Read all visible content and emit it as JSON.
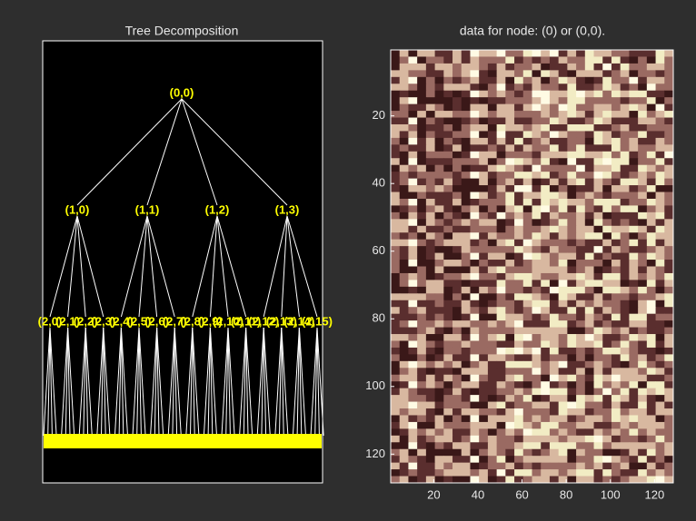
{
  "tree_panel": {
    "title": "Tree Decomposition",
    "levels": [
      [
        "(0,0)"
      ],
      [
        "(1,0)",
        "(1,1)",
        "(1,2)",
        "(1,3)"
      ],
      [
        "(2,0)",
        "(2,1)",
        "(2,2)",
        "(2,3)",
        "(2,4)",
        "(2,5)",
        "(2,6)",
        "(2,7)",
        "(2,8)",
        "(2,9)",
        "(2,10)",
        "(2,11)",
        "(2,12)",
        "(2,13)",
        "(2,14)",
        "(2,15)"
      ]
    ]
  },
  "image_panel": {
    "title": "data for node: (0) or (0,0).",
    "xlim": [
      0.5,
      128.5
    ],
    "ylim": [
      0.5,
      128.5
    ],
    "xticks": [
      20,
      40,
      60,
      80,
      100,
      120
    ],
    "yticks": [
      20,
      40,
      60,
      80,
      100,
      120
    ]
  }
}
